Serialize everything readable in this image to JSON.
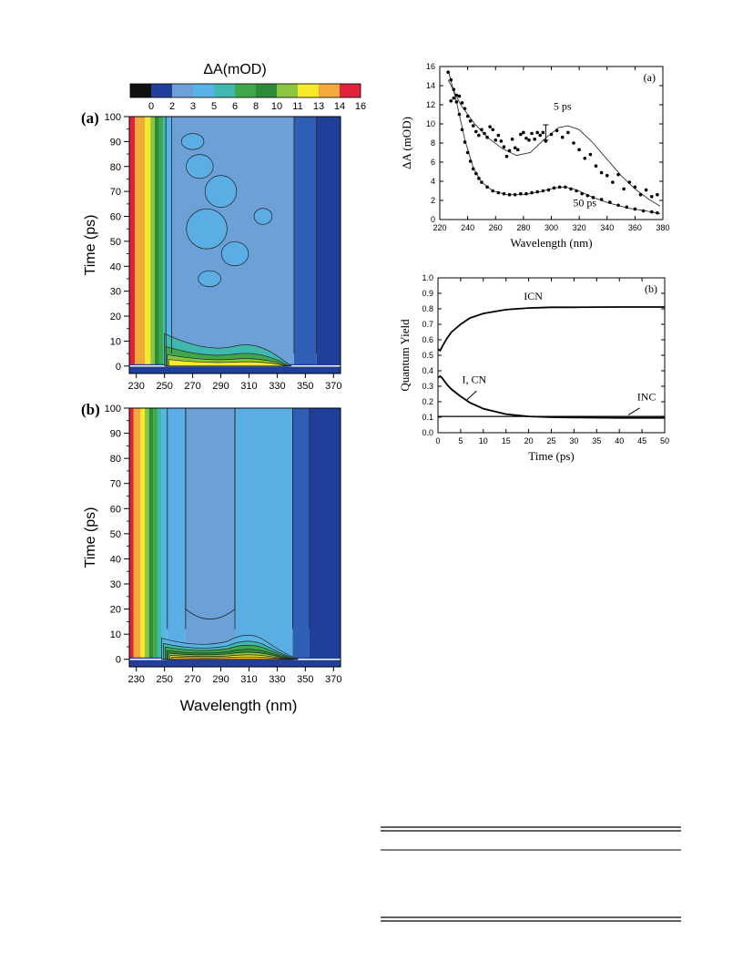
{
  "chart_data": [
    {
      "panel": "(a)",
      "type": "heatmap",
      "colorbar": {
        "title": "ΔA(mOD)",
        "ticks": [
          "0",
          "2",
          "3",
          "5",
          "6",
          "8",
          "10",
          "11",
          "13",
          "14",
          "16"
        ],
        "colors": [
          "#111111",
          "#1f3f9a",
          "#6ea0d8",
          "#58b4e6",
          "#3fb8b0",
          "#3fa84a",
          "#2e8b3a",
          "#8cc63f",
          "#f7ea2a",
          "#f4a93b",
          "#e0223a"
        ]
      },
      "xlabel": "",
      "ylabel": "Time (ps)",
      "x_ticks": [
        "230",
        "250",
        "270",
        "290",
        "310",
        "330",
        "350",
        "370"
      ],
      "y_ticks": [
        "0",
        "10",
        "20",
        "30",
        "40",
        "50",
        "60",
        "70",
        "80",
        "90",
        "100"
      ],
      "xlim": [
        225,
        375
      ],
      "ylim": [
        -3,
        100
      ],
      "bands": [
        {
          "x": [
            225,
            229
          ],
          "value": 16
        },
        {
          "x": [
            229,
            236
          ],
          "value": 14
        },
        {
          "x": [
            236,
            240
          ],
          "value": 13
        },
        {
          "x": [
            240,
            243
          ],
          "value": 11
        },
        {
          "x": [
            243,
            246
          ],
          "value": 10
        },
        {
          "x": [
            246,
            249
          ],
          "value": 8
        },
        {
          "x": [
            249,
            251
          ],
          "value": 6
        },
        {
          "x": [
            251,
            255
          ],
          "value": 5
        },
        {
          "x": [
            255,
            342
          ],
          "value": 3
        },
        {
          "x": [
            342,
            358
          ],
          "value": 2.5
        },
        {
          "x": [
            358,
            375
          ],
          "value": 2
        }
      ]
    },
    {
      "panel": "(b)",
      "type": "heatmap",
      "xlabel": "Wavelength (nm)",
      "ylabel": "Time (ps)",
      "x_ticks": [
        "230",
        "250",
        "270",
        "290",
        "310",
        "330",
        "350",
        "370"
      ],
      "y_ticks": [
        "0",
        "10",
        "20",
        "30",
        "40",
        "50",
        "60",
        "70",
        "80",
        "90",
        "100"
      ],
      "xlim": [
        225,
        375
      ],
      "ylim": [
        -3,
        100
      ],
      "bands": [
        {
          "x": [
            225,
            228
          ],
          "value": 16
        },
        {
          "x": [
            228,
            233
          ],
          "value": 14
        },
        {
          "x": [
            233,
            236
          ],
          "value": 13
        },
        {
          "x": [
            236,
            239
          ],
          "value": 11
        },
        {
          "x": [
            239,
            242
          ],
          "value": 10
        },
        {
          "x": [
            242,
            245
          ],
          "value": 8
        },
        {
          "x": [
            245,
            248
          ],
          "value": 6
        },
        {
          "x": [
            248,
            252
          ],
          "value": 5
        },
        {
          "x": [
            252,
            265
          ],
          "value": 3.5
        },
        {
          "x": [
            265,
            300
          ],
          "value": 3
        },
        {
          "x": [
            300,
            341
          ],
          "value": 3.5
        },
        {
          "x": [
            341,
            353
          ],
          "value": 2.5
        },
        {
          "x": [
            353,
            375
          ],
          "value": 2
        }
      ]
    },
    {
      "panel": "(a)",
      "type": "scatter",
      "xlabel": "Wavelength (nm)",
      "ylabel": "ΔA (mOD)",
      "xlim": [
        220,
        380
      ],
      "ylim": [
        0,
        16
      ],
      "x_ticks": [
        "220",
        "240",
        "260",
        "280",
        "300",
        "320",
        "340",
        "360",
        "380"
      ],
      "y_ticks": [
        "0",
        "2",
        "4",
        "6",
        "8",
        "10",
        "12",
        "14",
        "16"
      ],
      "annotations": [
        "5 ps",
        "50 ps"
      ],
      "series": [
        {
          "name": "5 ps",
          "points": [
            [
              228,
              12.4
            ],
            [
              230,
              12.7
            ],
            [
              232,
              13.0
            ],
            [
              234,
              12.9
            ],
            [
              236,
              12.2
            ],
            [
              238,
              11.6
            ],
            [
              240,
              10.8
            ],
            [
              242,
              10.3
            ],
            [
              244,
              9.8
            ],
            [
              246,
              9.2
            ],
            [
              248,
              8.8
            ],
            [
              250,
              9.4
            ],
            [
              252,
              9.0
            ],
            [
              254,
              8.6
            ],
            [
              256,
              9.7
            ],
            [
              258,
              9.4
            ],
            [
              260,
              8.3
            ],
            [
              262,
              8.8
            ],
            [
              264,
              8.2
            ],
            [
              266,
              7.6
            ],
            [
              268,
              6.6
            ],
            [
              270,
              7.2
            ],
            [
              272,
              8.4
            ],
            [
              274,
              7.5
            ],
            [
              276,
              7.3
            ],
            [
              278,
              8.9
            ],
            [
              280,
              9.1
            ],
            [
              282,
              8.5
            ],
            [
              284,
              8.3
            ],
            [
              286,
              9.0
            ],
            [
              288,
              8.4
            ],
            [
              290,
              9.1
            ],
            [
              292,
              8.8
            ],
            [
              294,
              9.1
            ],
            [
              296,
              8.2
            ],
            [
              300,
              8.9
            ],
            [
              304,
              9.3
            ],
            [
              308,
              8.6
            ],
            [
              312,
              9.1
            ],
            [
              316,
              8.0
            ],
            [
              320,
              7.3
            ],
            [
              324,
              6.4
            ],
            [
              328,
              6.8
            ],
            [
              332,
              5.6
            ],
            [
              336,
              4.9
            ],
            [
              340,
              4.6
            ],
            [
              344,
              3.9
            ],
            [
              348,
              4.7
            ],
            [
              352,
              3.2
            ],
            [
              356,
              3.9
            ],
            [
              360,
              3.4
            ],
            [
              364,
              2.6
            ],
            [
              368,
              3.1
            ],
            [
              372,
              2.4
            ],
            [
              376,
              2.6
            ]
          ],
          "fit": [
            [
              226,
              14.6
            ],
            [
              235,
              12.0
            ],
            [
              245,
              10.0
            ],
            [
              255,
              8.5
            ],
            [
              265,
              7.4
            ],
            [
              275,
              6.7
            ],
            [
              285,
              7.0
            ],
            [
              295,
              8.4
            ],
            [
              305,
              9.6
            ],
            [
              312,
              9.8
            ],
            [
              320,
              9.4
            ],
            [
              330,
              8.0
            ],
            [
              340,
              6.3
            ],
            [
              350,
              4.6
            ],
            [
              360,
              3.2
            ],
            [
              370,
              2.1
            ],
            [
              378,
              1.4
            ]
          ]
        },
        {
          "name": "50 ps",
          "points": [
            [
              226,
              15.4
            ],
            [
              228,
              14.6
            ],
            [
              230,
              13.6
            ],
            [
              232,
              12.3
            ],
            [
              234,
              11.0
            ],
            [
              236,
              9.4
            ],
            [
              238,
              8.1
            ],
            [
              240,
              7.0
            ],
            [
              242,
              6.1
            ],
            [
              244,
              5.3
            ],
            [
              246,
              4.8
            ],
            [
              248,
              4.3
            ],
            [
              250,
              3.9
            ],
            [
              254,
              3.4
            ],
            [
              258,
              3.0
            ],
            [
              262,
              2.8
            ],
            [
              266,
              2.7
            ],
            [
              270,
              2.6
            ],
            [
              274,
              2.6
            ],
            [
              278,
              2.7
            ],
            [
              282,
              2.7
            ],
            [
              286,
              2.8
            ],
            [
              290,
              2.9
            ],
            [
              294,
              3.0
            ],
            [
              298,
              3.1
            ],
            [
              302,
              3.3
            ],
            [
              306,
              3.4
            ],
            [
              310,
              3.4
            ],
            [
              314,
              3.2
            ],
            [
              318,
              3.0
            ],
            [
              322,
              2.7
            ],
            [
              326,
              2.5
            ],
            [
              330,
              2.3
            ],
            [
              336,
              2.1
            ],
            [
              342,
              1.8
            ],
            [
              348,
              1.5
            ],
            [
              354,
              1.3
            ],
            [
              360,
              1.1
            ],
            [
              366,
              0.9
            ],
            [
              372,
              0.8
            ],
            [
              376,
              0.7
            ]
          ],
          "fit": [
            [
              226,
              15.6
            ],
            [
              232,
              12.3
            ],
            [
              238,
              8.3
            ],
            [
              244,
              5.4
            ],
            [
              250,
              3.9
            ],
            [
              258,
              3.0
            ],
            [
              268,
              2.6
            ],
            [
              280,
              2.6
            ],
            [
              292,
              2.9
            ],
            [
              302,
              3.3
            ],
            [
              310,
              3.4
            ],
            [
              318,
              3.1
            ],
            [
              330,
              2.3
            ],
            [
              342,
              1.7
            ],
            [
              355,
              1.2
            ],
            [
              368,
              0.9
            ],
            [
              378,
              0.6
            ]
          ]
        }
      ]
    },
    {
      "panel": "(b)",
      "type": "line",
      "xlabel": "Time (ps)",
      "ylabel": "Quantum Yield",
      "xlim": [
        0,
        50
      ],
      "ylim": [
        0.0,
        1.0
      ],
      "x_ticks": [
        "0",
        "5",
        "10",
        "15",
        "20",
        "25",
        "30",
        "35",
        "40",
        "45",
        "50"
      ],
      "y_ticks": [
        "0.0",
        "0.1",
        "0.2",
        "0.3",
        "0.4",
        "0.5",
        "0.6",
        "0.7",
        "0.8",
        "0.9",
        "1.0"
      ],
      "series": [
        {
          "name": "ICN",
          "points": [
            [
              0,
              0.54
            ],
            [
              0.5,
              0.53
            ],
            [
              1,
              0.56
            ],
            [
              2,
              0.61
            ],
            [
              3,
              0.65
            ],
            [
              5,
              0.7
            ],
            [
              7,
              0.74
            ],
            [
              10,
              0.77
            ],
            [
              15,
              0.795
            ],
            [
              20,
              0.805
            ],
            [
              25,
              0.81
            ],
            [
              30,
              0.81
            ],
            [
              40,
              0.812
            ],
            [
              50,
              0.812
            ]
          ]
        },
        {
          "name": "I, CN",
          "points": [
            [
              0,
              0.355
            ],
            [
              0.5,
              0.365
            ],
            [
              1,
              0.35
            ],
            [
              2,
              0.31
            ],
            [
              3,
              0.28
            ],
            [
              5,
              0.235
            ],
            [
              7,
              0.195
            ],
            [
              10,
              0.155
            ],
            [
              15,
              0.12
            ],
            [
              20,
              0.105
            ],
            [
              25,
              0.1
            ],
            [
              30,
              0.098
            ],
            [
              40,
              0.096
            ],
            [
              50,
              0.096
            ]
          ]
        },
        {
          "name": "INC",
          "points": [
            [
              0,
              0.105
            ],
            [
              10,
              0.105
            ],
            [
              20,
              0.105
            ],
            [
              30,
              0.105
            ],
            [
              40,
              0.105
            ],
            [
              50,
              0.105
            ]
          ]
        }
      ]
    }
  ]
}
